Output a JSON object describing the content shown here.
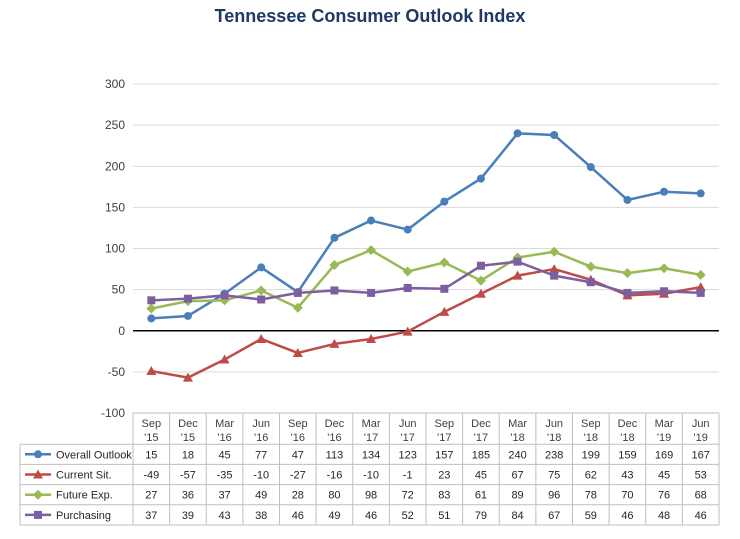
{
  "chart_data": {
    "type": "line",
    "title": "Tennessee Consumer Outlook Index",
    "categories": [
      [
        "Sep",
        "'15"
      ],
      [
        "Dec",
        "'15"
      ],
      [
        "Mar",
        "'16"
      ],
      [
        "Jun",
        "'16"
      ],
      [
        "Sep",
        "'16"
      ],
      [
        "Dec",
        "'16"
      ],
      [
        "Mar",
        "'17"
      ],
      [
        "Jun",
        "'17"
      ],
      [
        "Sep",
        "'17"
      ],
      [
        "Dec",
        "'17"
      ],
      [
        "Mar",
        "'18"
      ],
      [
        "Jun",
        "'18"
      ],
      [
        "Sep",
        "'18"
      ],
      [
        "Dec",
        "'18"
      ],
      [
        "Mar",
        "'19"
      ],
      [
        "Jun",
        "'19"
      ]
    ],
    "ylim": [
      -100,
      300
    ],
    "yticks": [
      -100,
      -50,
      0,
      50,
      100,
      150,
      200,
      250,
      300
    ],
    "grid": true,
    "legend": "data-table",
    "series": [
      {
        "name": "Overall Outlook",
        "color": "#4a7ebb",
        "marker": "circle",
        "values": [
          15,
          18,
          45,
          77,
          47,
          113,
          134,
          123,
          157,
          185,
          240,
          238,
          199,
          159,
          169,
          167
        ]
      },
      {
        "name": "Current Sit.",
        "color": "#be4b48",
        "marker": "triangle",
        "values": [
          -49,
          -57,
          -35,
          -10,
          -27,
          -16,
          -10,
          -1,
          23,
          45,
          67,
          75,
          62,
          43,
          45,
          53
        ]
      },
      {
        "name": "Future Exp.",
        "color": "#98b954",
        "marker": "diamond",
        "values": [
          27,
          36,
          37,
          49,
          28,
          80,
          98,
          72,
          83,
          61,
          89,
          96,
          78,
          70,
          76,
          68
        ]
      },
      {
        "name": "Purchasing",
        "color": "#7d5fa0",
        "marker": "square",
        "values": [
          37,
          39,
          43,
          38,
          46,
          49,
          46,
          52,
          51,
          79,
          84,
          67,
          59,
          46,
          48,
          46
        ]
      }
    ]
  }
}
